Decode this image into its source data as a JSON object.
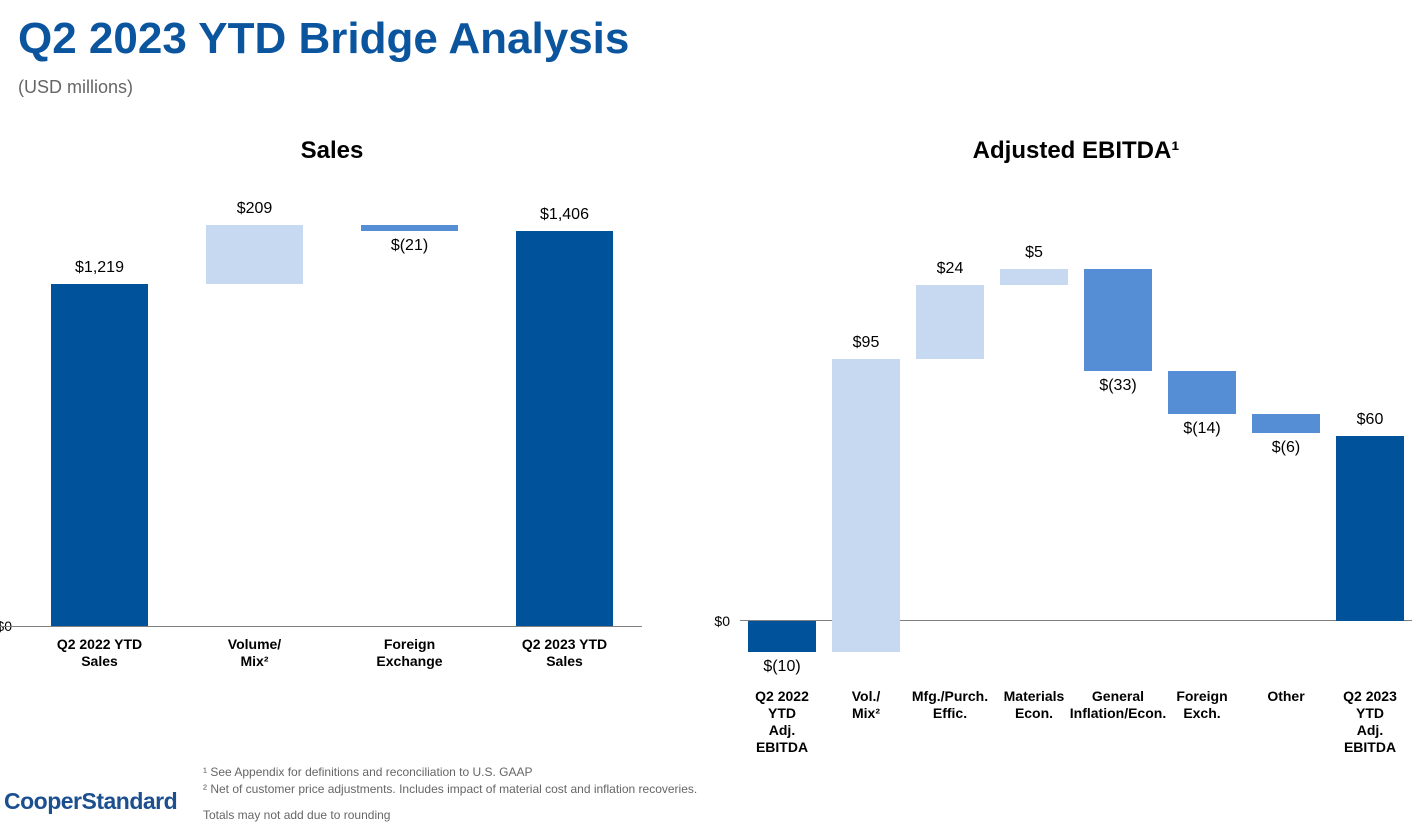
{
  "header": {
    "title": "Q2 2023 YTD Bridge Analysis",
    "subtitle": "(USD millions)"
  },
  "chart_data": [
    {
      "type": "waterfall",
      "title": "Sales",
      "categories": [
        "Q2 2022 YTD\nSales",
        "Volume/\nMix²",
        "Foreign\nExchange",
        "Q2 2023 YTD\nSales"
      ],
      "values": [
        1219,
        209,
        -21,
        1406
      ],
      "value_labels": [
        "$1,219",
        "$209",
        "$(21)",
        "$1,406"
      ],
      "colors": {
        "total": "#00529b",
        "increase": "#c6d9f1",
        "decrease": "#558ed5"
      },
      "ylim": [
        0,
        1500
      ],
      "yticks": [
        {
          "value": 0,
          "label": "$0"
        }
      ]
    },
    {
      "type": "waterfall",
      "title": "Adjusted EBITDA¹",
      "categories": [
        "Q2 2022\nYTD\nAdj.\nEBITDA",
        "Vol./\nMix²",
        "Mfg./Purch.\nEffic.",
        "Materials\nEcon.",
        "General\nInflation/Econ.",
        "Foreign\nExch.",
        "Other",
        "Q2 2023\nYTD\nAdj.\nEBITDA"
      ],
      "values": [
        -10,
        95,
        24,
        5,
        -33,
        -14,
        -6,
        60
      ],
      "value_labels": [
        "$(10)",
        "$95",
        "$24",
        "$5",
        "$(33)",
        "$(14)",
        "$(6)",
        "$60"
      ],
      "colors": {
        "total": "#00529b",
        "increase": "#c6d9f1",
        "decrease": "#558ed5"
      },
      "ylim": [
        -15,
        120
      ],
      "yticks": [
        {
          "value": 0,
          "label": "$0"
        }
      ]
    }
  ],
  "footnotes": [
    "¹ See Appendix for definitions and reconciliation to U.S. GAAP",
    "² Net of customer price adjustments. Includes impact of material cost and inflation recoveries.",
    "Totals may not add due to rounding"
  ],
  "logo": "CooperStandard"
}
